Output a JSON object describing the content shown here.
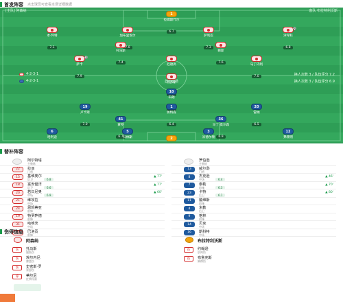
{
  "lineup_header": {
    "title": "首发阵容",
    "subtitle": "点击球员可查看本场详细数据"
  },
  "pitch": {
    "home_label": "[主队] 阿森纳",
    "away_label": "客队 布拉特利沃斯",
    "stadium": "酋长球场",
    "home_formation": "4-2-3-1",
    "away_formation": "4-2-3-1",
    "home_formation_note": "换人次数 3 / 队伍评分 7.2",
    "away_formation_note": "换人次数 3 / 队伍评分 6.9",
    "colors": {
      "pitch": "#2e9e56",
      "home": "#d42a2a",
      "away": "#1f5a9e",
      "gk": "#f4a40c"
    }
  },
  "home_players": [
    {
      "num": "1",
      "name": "拉姆斯代尔",
      "rating": "6.7",
      "event": ""
    },
    {
      "num": "4",
      "name": "本·怀特",
      "rating": "7.1",
      "event": ""
    },
    {
      "num": "6",
      "name": "加布里埃尔",
      "rating": "7.0",
      "event": ""
    },
    {
      "num": "12",
      "name": "萨利巴",
      "rating": "7.3",
      "event": ""
    },
    {
      "num": "35",
      "name": "津琴科",
      "rating": "6.8",
      "event": "⚽"
    },
    {
      "num": "5",
      "name": "托马斯",
      "rating": "7.4",
      "event": ""
    },
    {
      "num": "41",
      "name": "赖斯",
      "rating": "7.6",
      "event": ""
    },
    {
      "num": "7",
      "name": "萨卡",
      "rating": "7.9",
      "event": "⚽"
    },
    {
      "num": "8",
      "name": "厄德高",
      "rating": "8.1",
      "event": ""
    },
    {
      "num": "11",
      "name": "马丁内利",
      "rating": "7.0",
      "event": ""
    },
    {
      "num": "9",
      "name": "热苏斯",
      "rating": "7.2",
      "event": ""
    }
  ],
  "away_players": [
    {
      "num": "1",
      "name": "佩特森",
      "rating": "6.4",
      "event": ""
    },
    {
      "num": "2",
      "name": "马斯特罗",
      "rating": "6.2",
      "event": ""
    },
    {
      "num": "3",
      "name": "米德尔顿",
      "rating": "6.5",
      "event": ""
    },
    {
      "num": "5",
      "name": "科林斯",
      "rating": "6.6",
      "event": ""
    },
    {
      "num": "12",
      "name": "弗莱明",
      "rating": "6.3",
      "event": ""
    },
    {
      "num": "41",
      "name": "蒙罗",
      "rating": "6.7",
      "event": ""
    },
    {
      "num": "6",
      "name": "哈利迪",
      "rating": "6.8",
      "event": ""
    },
    {
      "num": "36",
      "name": "马丁·奥尔森",
      "rating": "6.9",
      "event": ""
    },
    {
      "num": "19",
      "name": "卢卡斯",
      "rating": "7.0",
      "event": ""
    },
    {
      "num": "10",
      "name": "布朗",
      "rating": "6.6",
      "event": ""
    },
    {
      "num": "20",
      "name": "雷纳",
      "rating": "6.5",
      "event": ""
    }
  ],
  "subs_header": {
    "title": "替补阵容"
  },
  "home_coach": {
    "name": "阿尔特塔",
    "role": "主教练"
  },
  "away_coach": {
    "name": "罗伯逊",
    "role": "主教练"
  },
  "home_subs": [
    {
      "num": "22",
      "name": "拉亚",
      "pos": "门将",
      "rating": "",
      "minute": ""
    },
    {
      "num": "15",
      "name": "基维奥尔",
      "pos": "后卫",
      "rating": "6.8",
      "minute": "▲ 77'"
    },
    {
      "num": "18",
      "name": "富安健洋",
      "pos": "后卫",
      "rating": "6.6",
      "minute": "▲ 77'"
    },
    {
      "num": "20",
      "name": "若日尼奥",
      "pos": "中场",
      "rating": "6.9",
      "minute": "▲ 60'"
    },
    {
      "num": "21",
      "name": "维埃拉",
      "pos": "中场",
      "rating": "",
      "minute": ""
    },
    {
      "num": "24",
      "name": "恩凯蒂亚",
      "pos": "前锋",
      "rating": "",
      "minute": ""
    },
    {
      "num": "19",
      "name": "特罗萨德",
      "pos": "前锋",
      "rating": "",
      "minute": ""
    },
    {
      "num": "31",
      "name": "哈维茨",
      "pos": "中场",
      "rating": "",
      "minute": ""
    },
    {
      "num": "26",
      "name": "巴洛贡",
      "pos": "前锋",
      "rating": "",
      "minute": ""
    }
  ],
  "away_subs": [
    {
      "num": "13",
      "name": "威尔逊",
      "pos": "门将",
      "rating": "",
      "minute": ""
    },
    {
      "num": "8",
      "name": "杰克逊",
      "pos": "中场",
      "rating": "6.4",
      "minute": "▲ 46'"
    },
    {
      "num": "7",
      "name": "泰勒",
      "pos": "前锋",
      "rating": "6.3",
      "minute": "▲ 70'"
    },
    {
      "num": "23",
      "name": "卡特",
      "pos": "后卫",
      "rating": "6.1",
      "minute": "▲ 80'"
    },
    {
      "num": "11",
      "name": "戴维斯",
      "pos": "前锋",
      "rating": "",
      "minute": ""
    },
    {
      "num": "4",
      "name": "米勒",
      "pos": "后卫",
      "rating": "",
      "minute": ""
    },
    {
      "num": "9",
      "name": "格林",
      "pos": "前锋",
      "rating": "",
      "minute": ""
    },
    {
      "num": "14",
      "name": "贝克",
      "pos": "中场",
      "rating": "",
      "minute": ""
    },
    {
      "num": "16",
      "name": "斯科特",
      "pos": "中场",
      "rating": "",
      "minute": ""
    }
  ],
  "injury_header": {
    "title": "伤停信息"
  },
  "home_team_name": "阿森纳",
  "away_team_name": "布拉特利沃斯",
  "home_injuries": [
    {
      "badge": "伤",
      "name": "托马斯",
      "reason": "腿筋伤"
    },
    {
      "badge": "伤",
      "name": "埃尔内尼",
      "reason": "膝盖伤"
    },
    {
      "badge": "伤",
      "name": "史密斯·罗",
      "reason": "背部伤"
    },
    {
      "badge": "停",
      "name": "蒂尔尼",
      "reason": "红牌停赛"
    }
  ],
  "away_injuries": [
    {
      "badge": "伤",
      "name": "约翰逊",
      "reason": "肌肉伤"
    },
    {
      "badge": "伤",
      "name": "布鲁克斯",
      "reason": "脚踝伤"
    }
  ]
}
